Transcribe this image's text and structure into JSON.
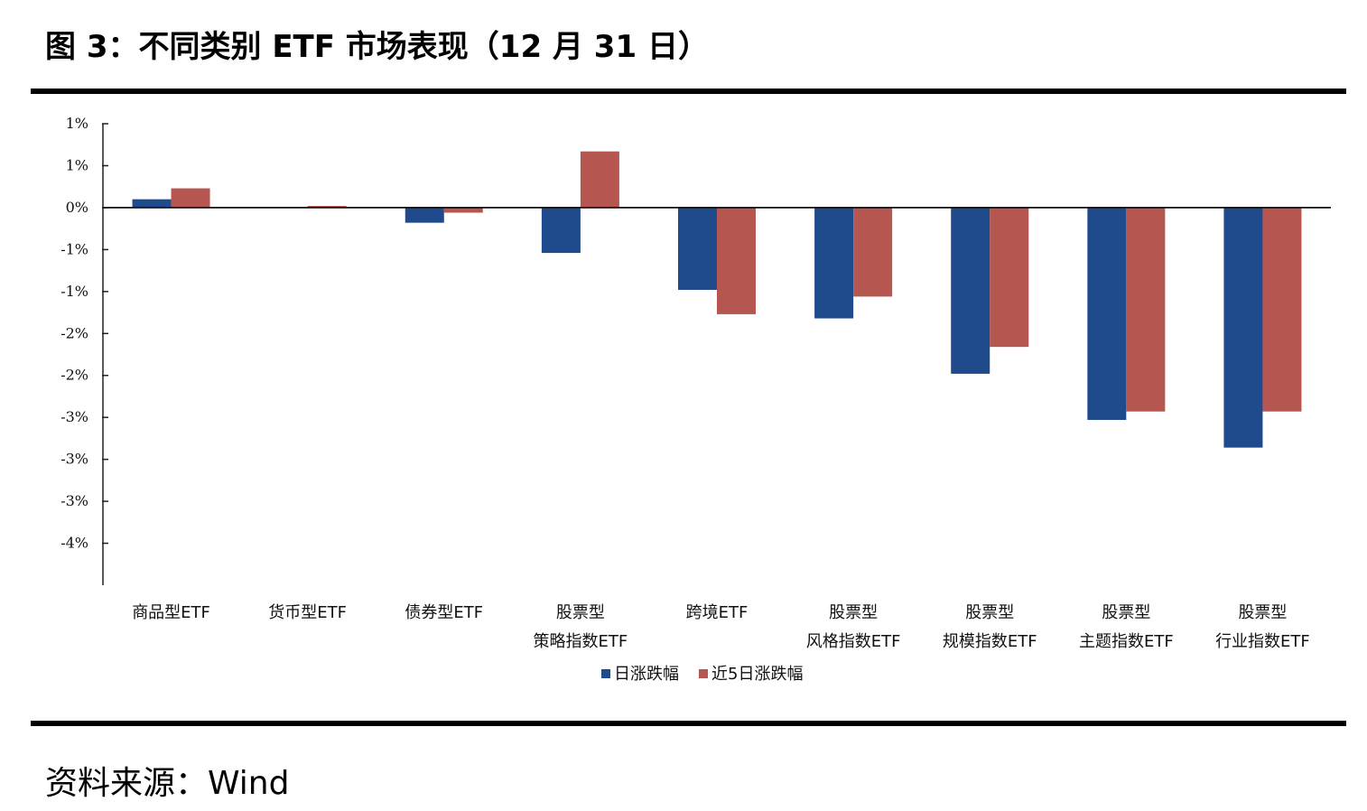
{
  "title": "图 3：不同类别 ETF 市场表现（12 月 31 日）",
  "source": "资料来源：Wind",
  "chart_data": {
    "type": "bar",
    "categories": [
      [
        "商品型ETF"
      ],
      [
        "货币型ETF"
      ],
      [
        "债券型ETF"
      ],
      [
        "股票型",
        "策略指数ETF"
      ],
      [
        "跨境ETF"
      ],
      [
        "股票型",
        "风格指数ETF"
      ],
      [
        "股票型",
        "规模指数ETF"
      ],
      [
        "股票型",
        "主题指数ETF"
      ],
      [
        "股票型",
        "行业指数ETF"
      ]
    ],
    "series": [
      {
        "name": "日涨跌幅",
        "color": "#1f4a8c",
        "values": [
          0.1,
          0.01,
          -0.18,
          -0.54,
          -0.98,
          -1.32,
          -1.98,
          -2.53,
          -2.86
        ]
      },
      {
        "name": "近5日涨跌幅",
        "color": "#b55650",
        "values": [
          0.23,
          0.02,
          -0.06,
          0.67,
          -1.27,
          -1.06,
          -1.66,
          -2.43,
          -2.43
        ]
      }
    ],
    "ylim": [
      -4.5,
      1.0
    ],
    "yticks": [
      1.0,
      0.5,
      0.0,
      -0.5,
      -1.0,
      -1.5,
      -2.0,
      -2.5,
      -3.0,
      -3.5,
      -4.0
    ],
    "ytick_labels": [
      "1%",
      "1%",
      "0%",
      "-1%",
      "-1%",
      "-2%",
      "-2%",
      "-3%",
      "-3%",
      "-3%",
      "-4%"
    ],
    "legend_position": "bottom-center",
    "grid": false
  }
}
